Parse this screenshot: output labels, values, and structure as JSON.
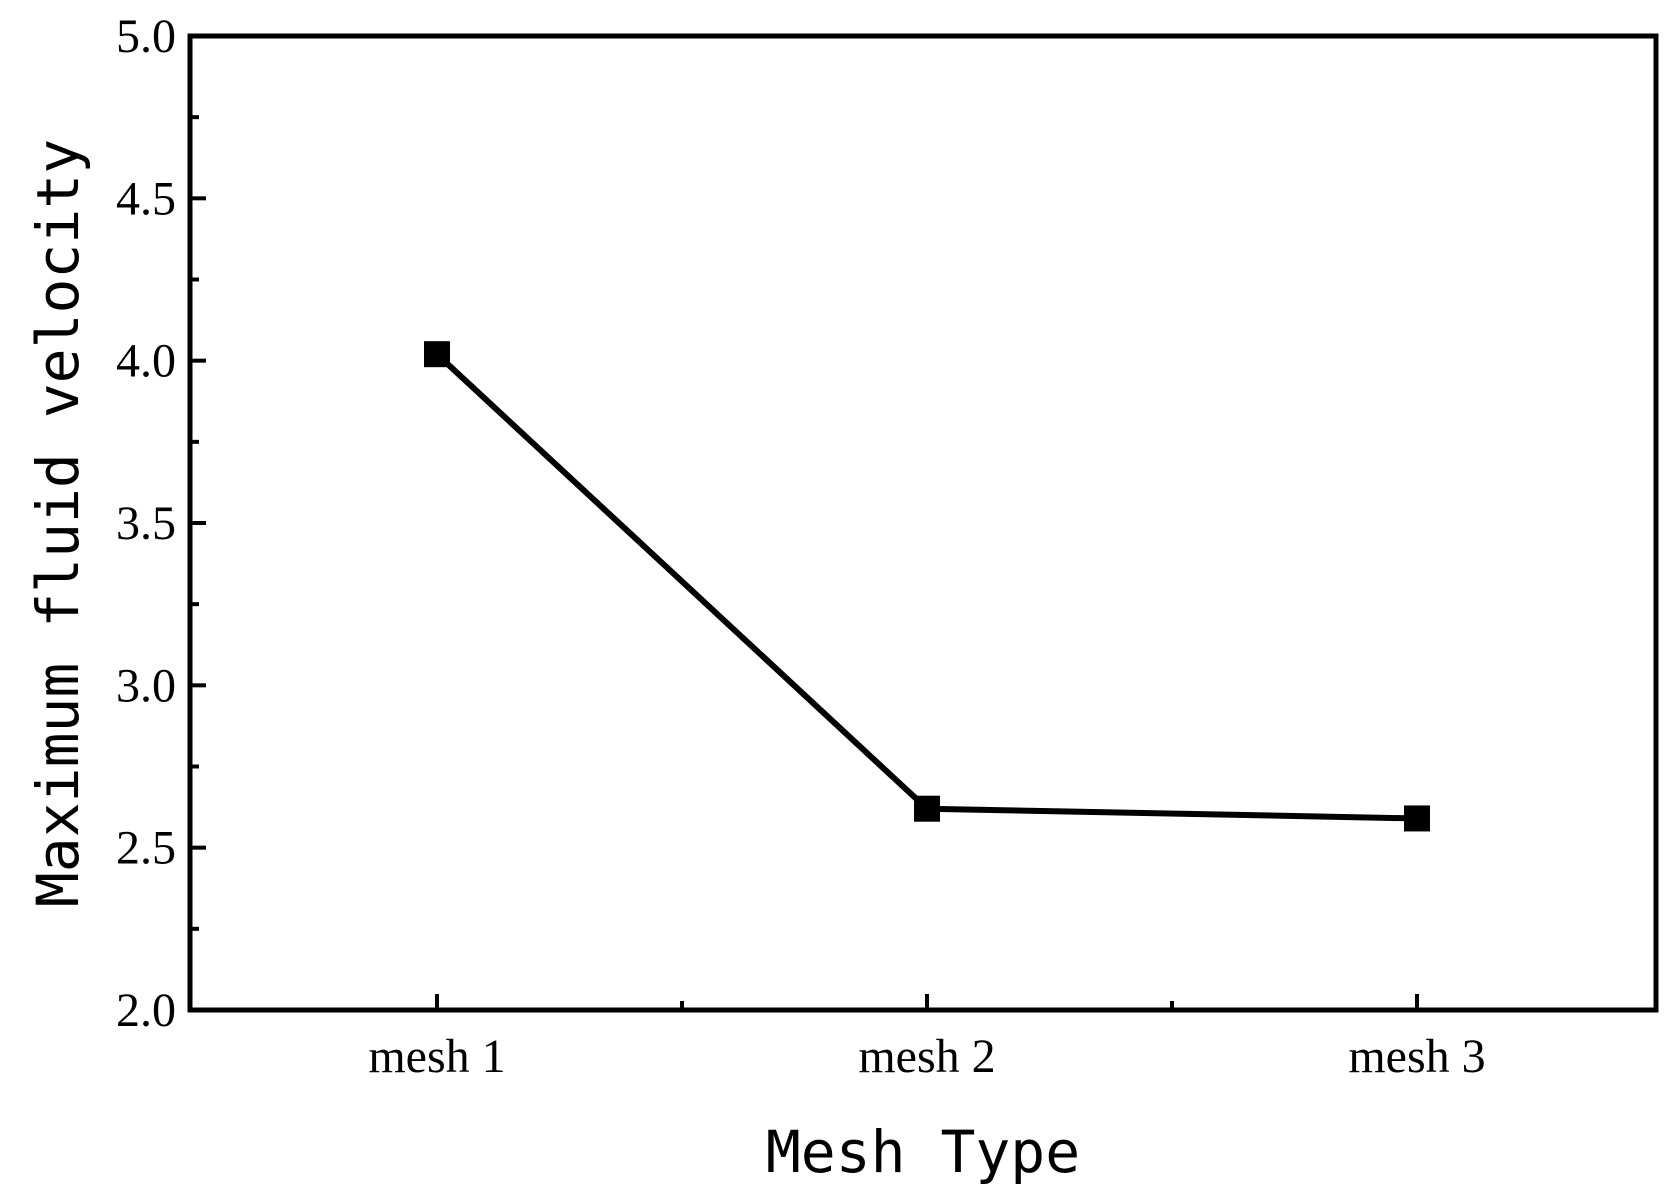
{
  "chart_data": {
    "type": "line",
    "title": "",
    "xlabel": "Mesh Type",
    "ylabel": "Maximum fluid velocity",
    "categories": [
      "mesh 1",
      "mesh 2",
      "mesh 3"
    ],
    "values": [
      4.02,
      2.62,
      2.59
    ],
    "ylim": [
      2.0,
      5.0
    ],
    "yticks": [
      "2.0",
      "2.5",
      "3.0",
      "3.5",
      "4.0",
      "4.5",
      "5.0"
    ],
    "ytick_values": [
      2.0,
      2.5,
      3.0,
      3.5,
      4.0,
      4.5,
      5.0
    ],
    "marker": "square",
    "grid": false,
    "legend": "none",
    "colors": {
      "line": "#000000",
      "marker": "#000000",
      "axes": "#000000"
    }
  }
}
